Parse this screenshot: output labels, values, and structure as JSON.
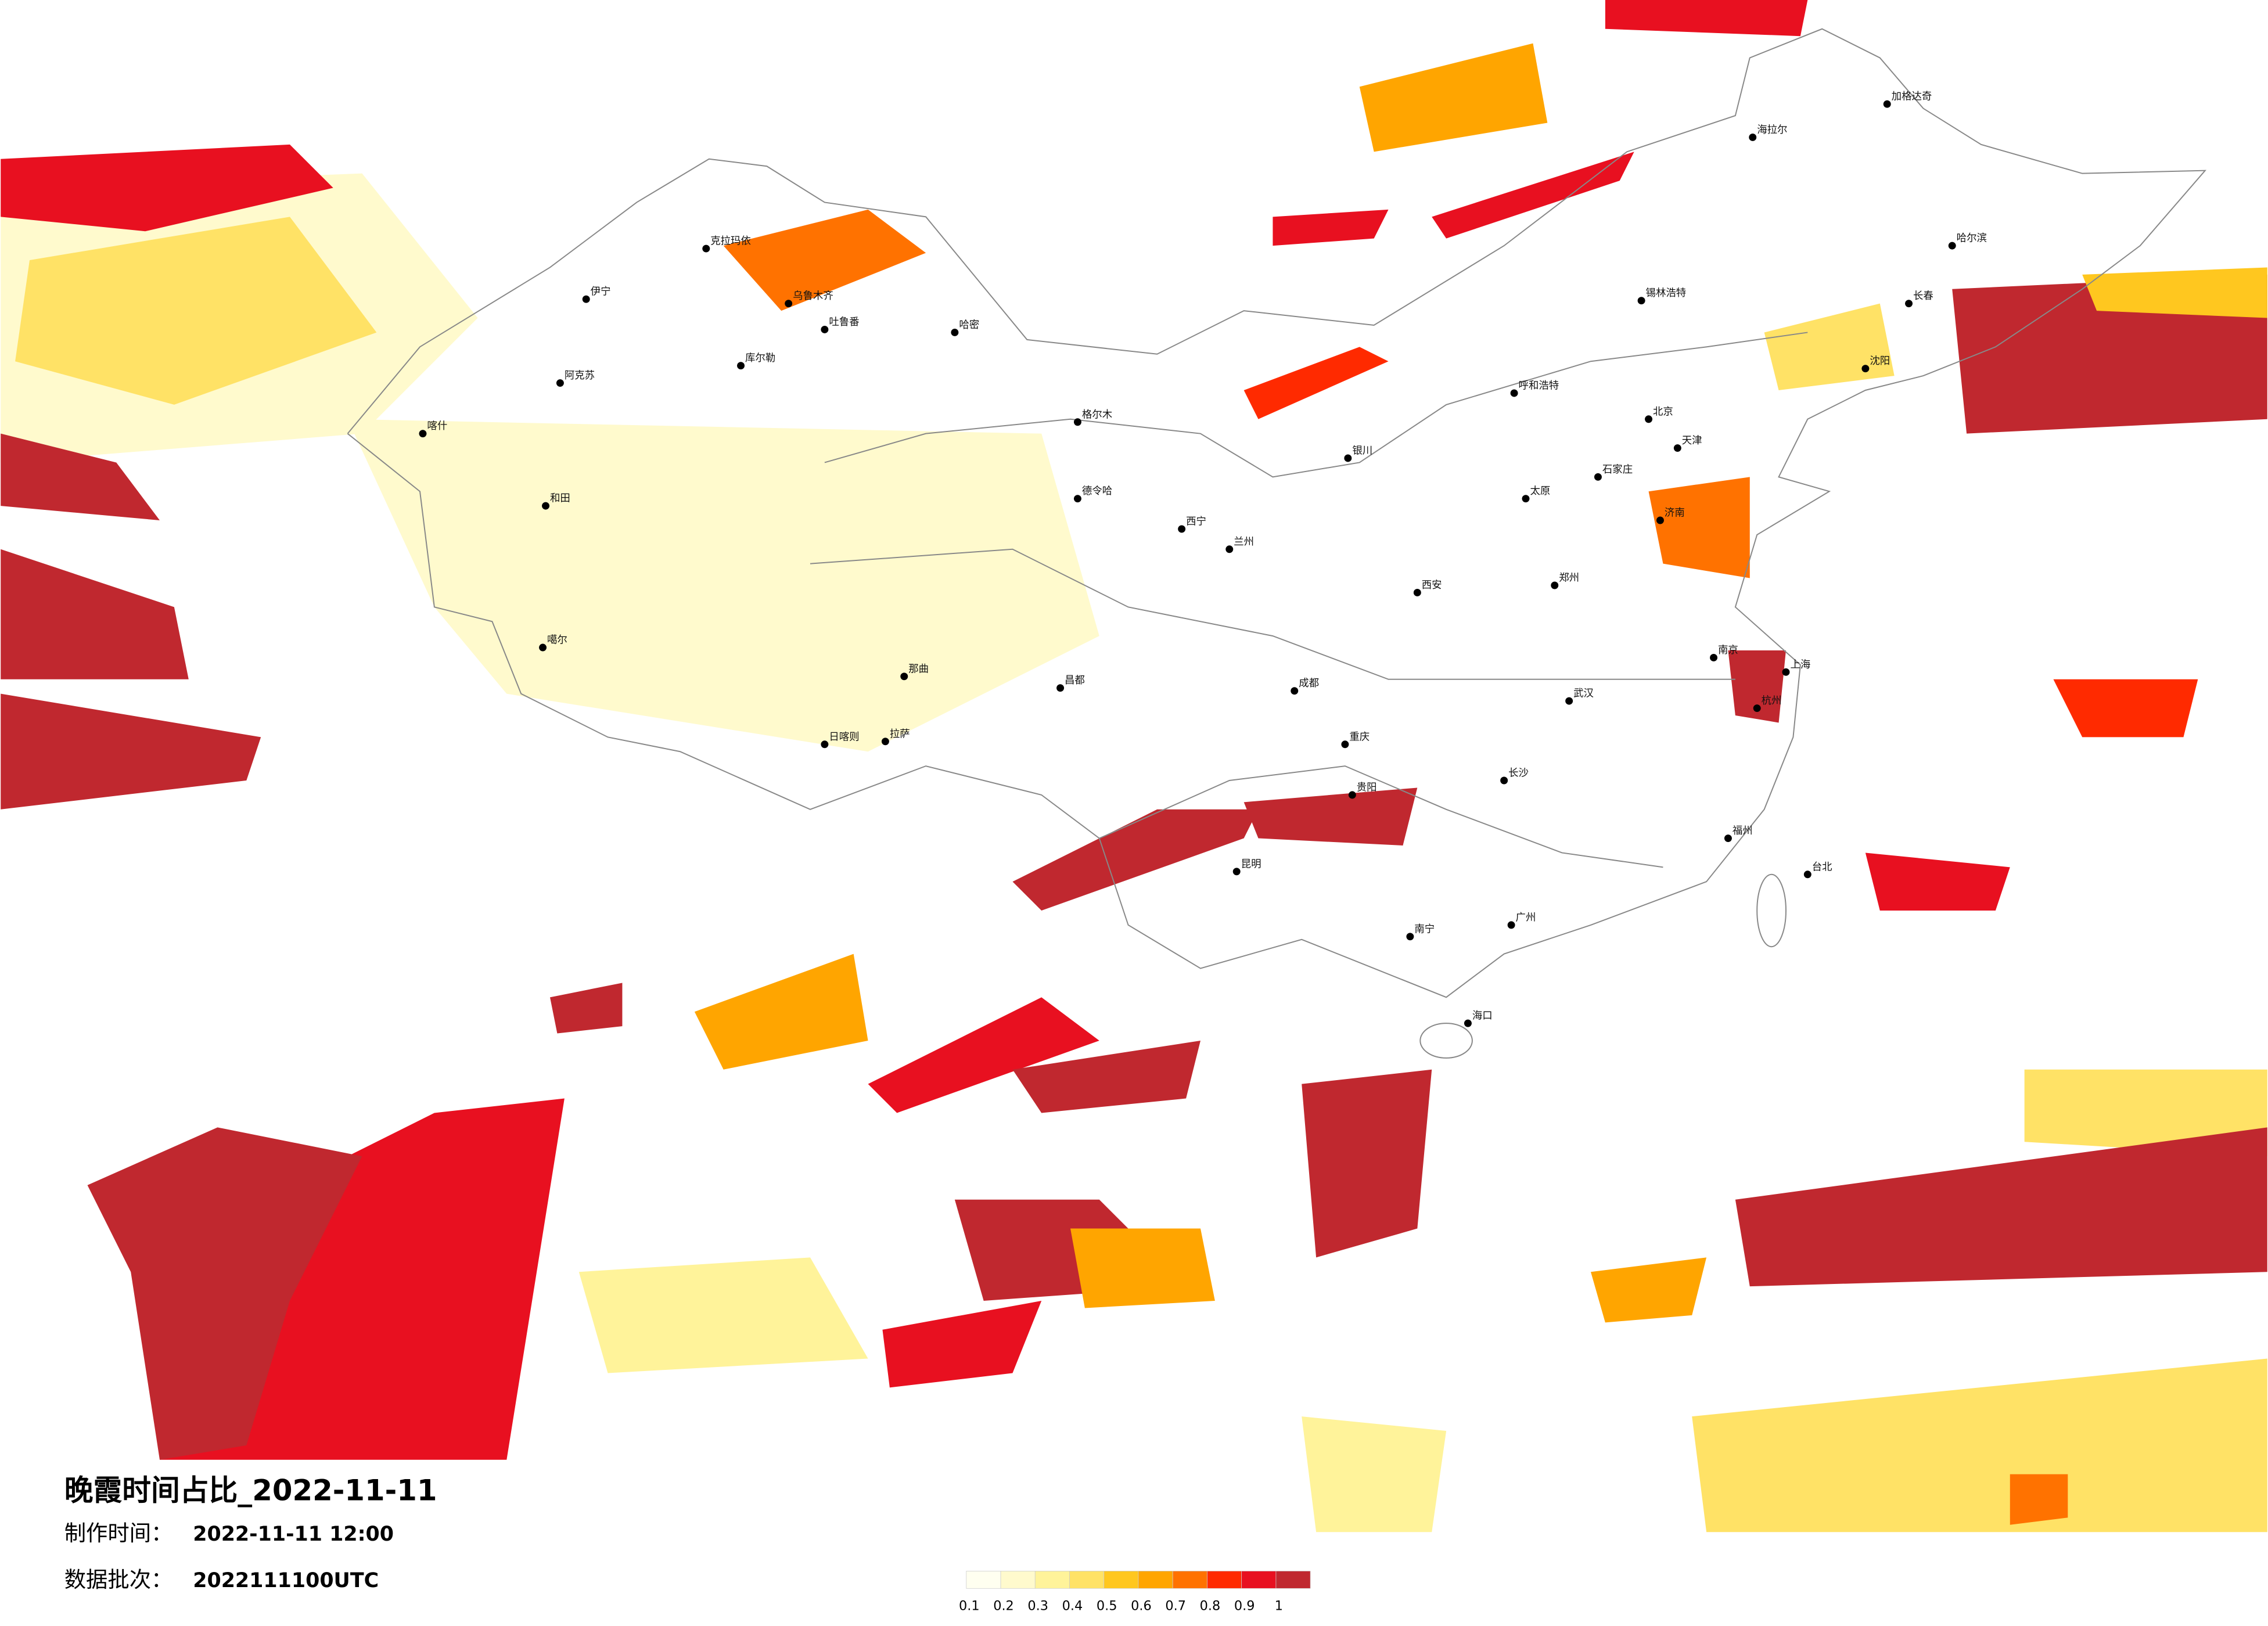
{
  "title": "晚霞时间占比_2022-11-11",
  "make_time": {
    "label": "制作时间：",
    "value": "2022-11-11 12:00"
  },
  "data_batch": {
    "label": "数据批次：",
    "value": "2022111100UTC"
  },
  "legend": {
    "labels": [
      "0.1",
      "0.2",
      "0.3",
      "0.4",
      "0.5",
      "0.6",
      "0.7",
      "0.8",
      "0.9",
      "1"
    ],
    "colors": [
      "#fffff0",
      "#fffacd",
      "#fff39a",
      "#ffe266",
      "#ffc71f",
      "#ffa500",
      "#ff7200",
      "#ff2a00",
      "#e81020",
      "#c0282f"
    ]
  },
  "cities": [
    "克拉玛依",
    "伊宁",
    "阿克苏",
    "喀什",
    "和田",
    "乌鲁木齐",
    "吐鲁番",
    "哈密",
    "库尔勒",
    "噶尔",
    "日喀则",
    "拉萨",
    "那曲",
    "昌都",
    "格尔木",
    "德令哈",
    "西宁",
    "兰州",
    "成都",
    "重庆",
    "昆明",
    "贵阳",
    "南宁",
    "广州",
    "海口",
    "长沙",
    "武汉",
    "南京",
    "上海",
    "杭州",
    "福州",
    "台北",
    "北京",
    "天津",
    "济南",
    "郑州",
    "西安",
    "太原",
    "石家庄",
    "呼和浩特",
    "银川",
    "沈阳",
    "长春",
    "哈尔滨",
    "海拉尔",
    "锡林浩特",
    "加格达奇"
  ]
}
